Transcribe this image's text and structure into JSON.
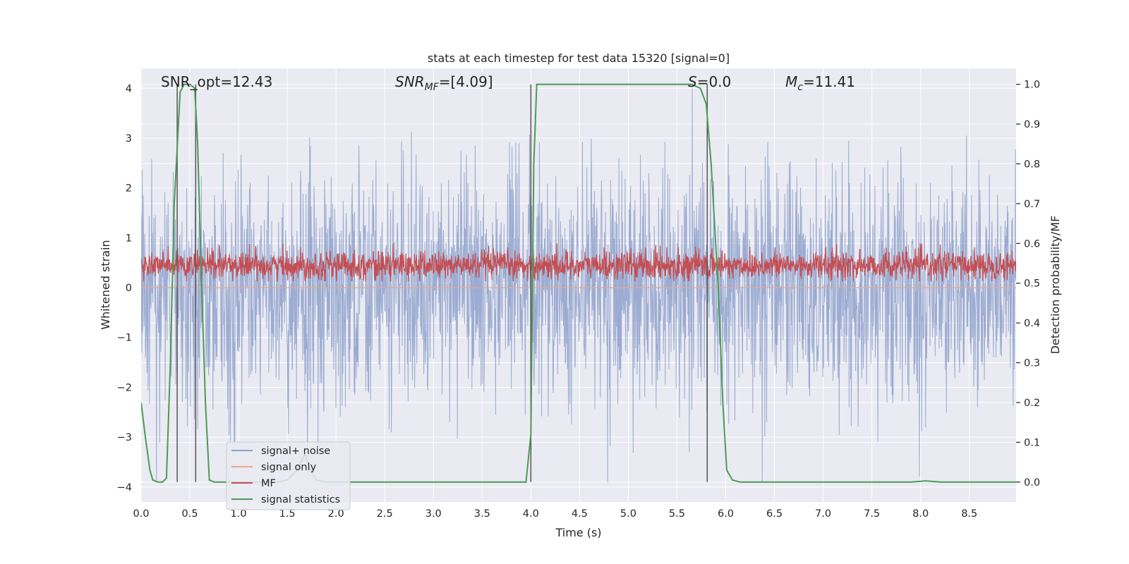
{
  "chart_data": {
    "type": "line",
    "title": "stats at each timestep for test data 15320 [signal=0]",
    "xlabel": "Time (s)",
    "ylabel": "Whitened strain",
    "y2label": "Detection probability/MF",
    "xlim": [
      0.0,
      8.98
    ],
    "ylim": [
      -4.3,
      4.4
    ],
    "y2lim": [
      -0.05,
      1.04
    ],
    "xticks": [
      "0.0",
      "0.5",
      "1.0",
      "1.5",
      "2.0",
      "2.5",
      "3.0",
      "3.5",
      "4.0",
      "4.5",
      "5.0",
      "5.5",
      "6.0",
      "6.5",
      "7.0",
      "7.5",
      "8.0",
      "8.5"
    ],
    "yticks": [
      "4",
      "3",
      "2",
      "1",
      "0",
      "−1",
      "−2",
      "−3",
      "−4"
    ],
    "y2ticks": [
      "1.0",
      "0.9",
      "0.8",
      "0.7",
      "0.6",
      "0.5",
      "0.4",
      "0.3",
      "0.2",
      "0.1",
      "0.0"
    ],
    "grid": true,
    "annotations": {
      "snr_opt": "SNR_opt=12.43",
      "snr_mf_label": "SNR",
      "snr_mf_sub": "MF",
      "snr_mf_value": "=[4.09]",
      "s_label": "S",
      "s_value": "=0.0",
      "mc_label": "M",
      "mc_sub": "c",
      "mc_value": "=11.41"
    },
    "vertical_lines_x": [
      0.37,
      0.56,
      4.0,
      5.81
    ],
    "legend": {
      "position": "lower-left",
      "entries": [
        "signal+ noise",
        "signal only",
        "MF",
        "signal statistics"
      ]
    },
    "series": [
      {
        "name": "signal+ noise",
        "axis": "left",
        "color": "#8da0cb",
        "description": "whitened noisy strain, roughly within -4 to 4",
        "upper_envelope_range": [
          0.9,
          4.0
        ],
        "lower_envelope_range": [
          -3.9,
          -1.0
        ]
      },
      {
        "name": "signal only",
        "axis": "left",
        "color": "#e8a98e",
        "values_note": "flat at 0 (signal=0)"
      },
      {
        "name": "MF",
        "axis": "right",
        "color": "#c44e52",
        "band_range": [
          0.505,
          0.6
        ]
      },
      {
        "name": "signal statistics",
        "axis": "right",
        "color": "#4c9a54",
        "x": [
          0.0,
          0.04,
          0.09,
          0.12,
          0.17,
          0.22,
          0.26,
          0.3,
          0.34,
          0.4,
          0.44,
          0.5,
          0.55,
          0.58,
          0.62,
          0.66,
          0.7,
          0.75,
          0.85,
          1.0,
          1.1,
          1.2,
          1.3,
          1.4,
          1.5,
          1.6,
          1.68,
          1.74,
          1.8,
          1.9,
          2.0,
          2.5,
          3.0,
          3.5,
          3.95,
          4.0,
          4.03,
          4.06,
          4.1,
          4.5,
          5.0,
          5.5,
          5.65,
          5.74,
          5.8,
          5.85,
          5.92,
          5.97,
          6.01,
          6.07,
          6.15,
          6.5,
          7.0,
          7.5,
          7.9,
          8.05,
          8.2,
          8.5,
          8.98
        ],
        "values": [
          0.2,
          0.12,
          0.03,
          0.005,
          0.0,
          0.0,
          0.01,
          0.3,
          0.7,
          0.98,
          1.0,
          1.0,
          0.99,
          0.85,
          0.5,
          0.2,
          0.005,
          0.0,
          0.0,
          0.0,
          0.0,
          0.0,
          0.0,
          0.0,
          0.005,
          0.03,
          0.07,
          0.03,
          0.005,
          0.0,
          0.0,
          0.0,
          0.0,
          0.0,
          0.0,
          0.12,
          0.8,
          1.0,
          1.0,
          1.0,
          1.0,
          1.0,
          1.0,
          0.99,
          0.95,
          0.8,
          0.5,
          0.2,
          0.03,
          0.005,
          0.0,
          0.0,
          0.0,
          0.0,
          0.0,
          0.003,
          0.0,
          0.0,
          0.0
        ]
      }
    ]
  },
  "colors": {
    "plot_bg": "#eaeaf2",
    "grid": "#ffffff",
    "vline": "#555555"
  }
}
